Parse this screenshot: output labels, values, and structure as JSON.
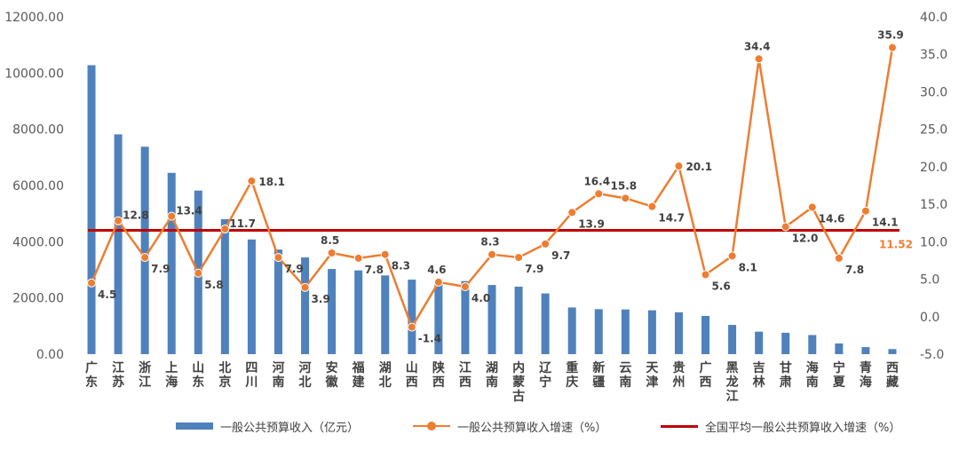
{
  "chart_data": {
    "type": "bar",
    "categories": [
      "广东",
      "江苏",
      "浙江",
      "上海",
      "山东",
      "北京",
      "四川",
      "河南",
      "河北",
      "安徽",
      "福建",
      "湖北",
      "山西",
      "陕西",
      "江西",
      "湖南",
      "内蒙古",
      "辽宁",
      "重庆",
      "新疆",
      "云南",
      "天津",
      "贵州",
      "广西",
      "黑龙江",
      "吉林",
      "甘肃",
      "海南",
      "宁夏",
      "青海",
      "西藏"
    ],
    "series": [
      {
        "name": "一般公共预算收入（亿元）",
        "type": "bar",
        "axis": "left",
        "color": "#4F81BD",
        "values": [
          10280,
          7820,
          7380,
          6450,
          5820,
          4800,
          4080,
          3720,
          3440,
          3030,
          2980,
          2800,
          2650,
          2630,
          2600,
          2460,
          2400,
          2160,
          1660,
          1600,
          1590,
          1560,
          1490,
          1360,
          1040,
          800,
          760,
          680,
          380,
          250,
          180
        ]
      },
      {
        "name": "一般公共预算收入增速（%）",
        "type": "line",
        "axis": "right",
        "color": "#ED7D31",
        "values": [
          4.5,
          12.8,
          7.9,
          13.4,
          5.8,
          11.7,
          18.1,
          7.9,
          3.9,
          8.5,
          7.8,
          8.3,
          -1.4,
          4.6,
          4.0,
          8.3,
          7.9,
          9.7,
          13.9,
          16.4,
          15.8,
          14.7,
          20.1,
          5.6,
          8.1,
          34.4,
          12.0,
          14.6,
          7.8,
          14.1,
          35.9
        ],
        "labels": [
          "4.5",
          "12.8",
          "7.9",
          "13.4",
          "5.8",
          "11.7",
          "18.1",
          "7.9",
          "3.9",
          "8.5",
          "7.8",
          "8.3",
          "-1.4",
          "4.6",
          "4.0",
          "8.3",
          "7.9",
          "9.7",
          "13.9",
          "16.4",
          "15.8",
          "14.7",
          "20.1",
          "5.6",
          "8.1",
          "34.4",
          "12.0",
          "14.6",
          "7.8",
          "14.1",
          "35.9"
        ]
      },
      {
        "name": "全国平均一般公共预算收入增速（%）",
        "type": "hline",
        "axis": "right",
        "color": "#C00000",
        "value": 11.52,
        "label": "11.52",
        "label_color": "#ED7D31"
      }
    ],
    "y_left": {
      "min": 0,
      "max": 12000,
      "step": 2000,
      "ticks": [
        "0.00",
        "2000.00",
        "4000.00",
        "6000.00",
        "8000.00",
        "10000.00",
        "12000.00"
      ]
    },
    "y_right": {
      "min": -5,
      "max": 40,
      "step": 5,
      "ticks": [
        "-5.0",
        "0.0",
        "5.0",
        "10.0",
        "15.0",
        "20.0",
        "25.0",
        "30.0",
        "35.0",
        "40.0"
      ]
    },
    "grid": false,
    "legend_position": "bottom"
  }
}
